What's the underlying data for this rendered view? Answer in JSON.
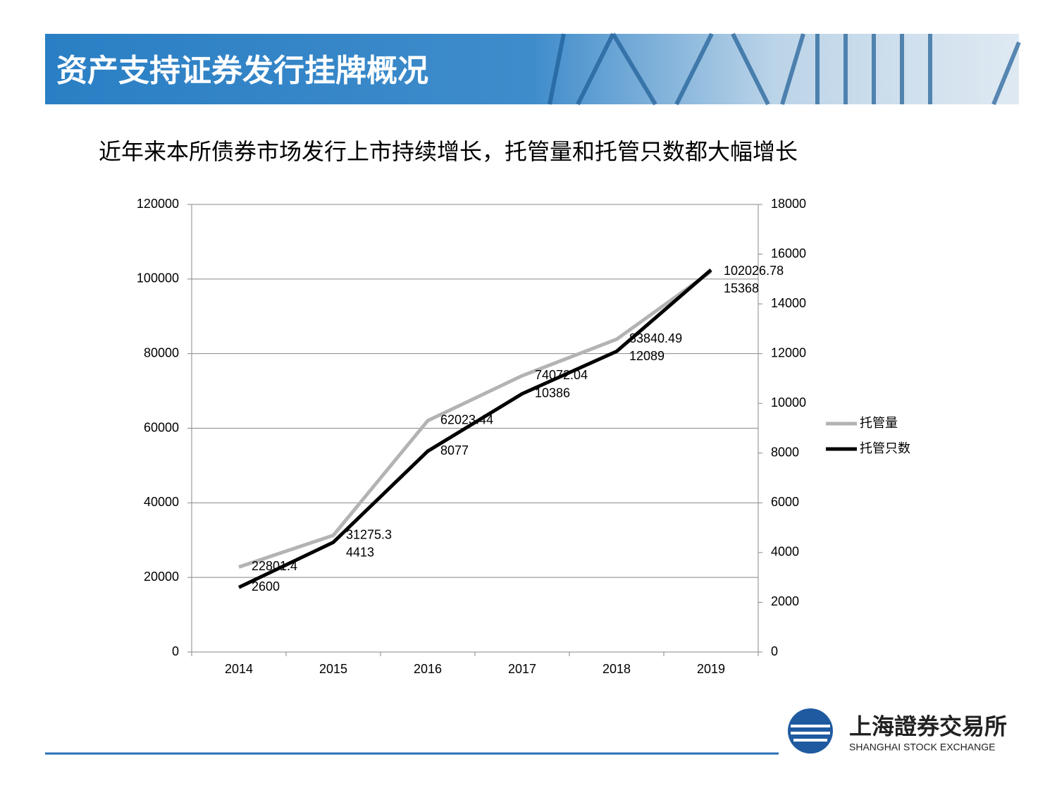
{
  "header": {
    "title": "资产支持证券发行挂牌概况"
  },
  "subtitle": "近年来本所债券市场发行上市持续增长，托管量和托管只数都大幅增长",
  "chart_data": {
    "type": "line",
    "categories": [
      "2014",
      "2015",
      "2016",
      "2017",
      "2018",
      "2019"
    ],
    "series": [
      {
        "name": "托管量",
        "color": "#b3b3b3",
        "values": [
          22801.4,
          31275.3,
          62023.44,
          74072.04,
          83840.49,
          102026.78
        ]
      },
      {
        "name": "托管只数",
        "color": "#000000",
        "axis": "y2",
        "values": [
          2600,
          4413,
          8077,
          10386,
          12089,
          15368
        ]
      }
    ],
    "ylim": [
      0,
      120000
    ],
    "yticks": [
      0,
      20000,
      40000,
      60000,
      80000,
      100000,
      120000
    ],
    "y2lim": [
      0,
      18000
    ],
    "y2ticks": [
      0,
      2000,
      4000,
      6000,
      8000,
      10000,
      12000,
      14000,
      16000,
      18000
    ],
    "grid": true,
    "legend": "right"
  },
  "logo": {
    "name": "上海證券交易所",
    "english": "SHANGHAI STOCK EXCHANGE"
  }
}
